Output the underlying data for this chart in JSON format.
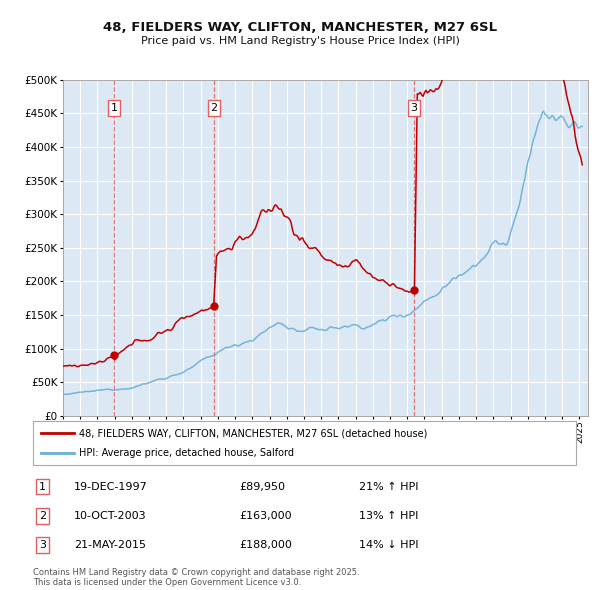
{
  "title1": "48, FIELDERS WAY, CLIFTON, MANCHESTER, M27 6SL",
  "title2": "Price paid vs. HM Land Registry's House Price Index (HPI)",
  "legend_line1": "48, FIELDERS WAY, CLIFTON, MANCHESTER, M27 6SL (detached house)",
  "legend_line2": "HPI: Average price, detached house, Salford",
  "sale1_date": "19-DEC-1997",
  "sale1_price": 89950,
  "sale1_pct": "21% ↑ HPI",
  "sale2_date": "10-OCT-2003",
  "sale2_price": 163000,
  "sale2_pct": "13% ↑ HPI",
  "sale3_date": "21-MAY-2015",
  "sale3_price": 188000,
  "sale3_pct": "14% ↓ HPI",
  "footer": "Contains HM Land Registry data © Crown copyright and database right 2025.\nThis data is licensed under the Open Government Licence v3.0.",
  "hpi_color": "#6aaed6",
  "price_color": "#c00000",
  "marker_color": "#c00000",
  "vline_color": "#e06060",
  "bg_color": "#dce9f5",
  "grid_color": "#ffffff",
  "ylim_max": 500000,
  "sale_years": [
    1997.96,
    2003.78,
    2015.38
  ],
  "sale_prices": [
    89950,
    163000,
    188000
  ]
}
